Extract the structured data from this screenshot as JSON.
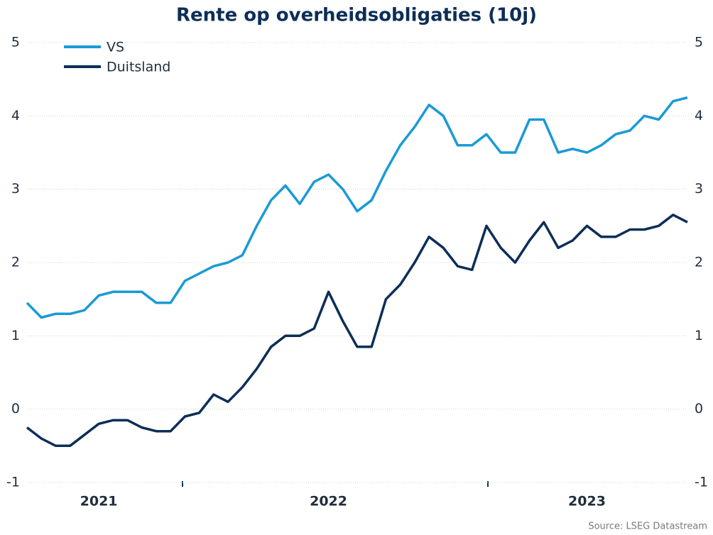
{
  "chart_data": {
    "type": "line",
    "title": "Rente op overheidsobligaties (10j)",
    "categories": [
      null,
      null,
      null,
      null,
      null,
      "2021",
      null,
      null,
      null,
      null,
      null,
      null,
      null,
      null,
      null,
      null,
      null,
      null,
      null,
      null,
      null,
      "2022",
      null,
      null,
      null,
      null,
      null,
      null,
      null,
      null,
      null,
      null,
      null,
      null,
      null,
      null,
      null,
      null,
      null,
      "2023",
      null,
      null,
      null,
      null,
      null,
      null,
      null
    ],
    "series": [
      {
        "name": "VS",
        "color": "#1a9ad6",
        "values": [
          1.45,
          1.25,
          1.3,
          1.3,
          1.35,
          1.55,
          1.6,
          1.6,
          1.6,
          1.45,
          1.45,
          1.75,
          1.85,
          1.95,
          2.0,
          2.1,
          2.5,
          2.85,
          3.05,
          2.8,
          3.1,
          3.2,
          3.0,
          2.7,
          2.85,
          3.25,
          3.6,
          3.85,
          4.15,
          4.0,
          3.6,
          3.6,
          3.75,
          3.5,
          3.5,
          3.95,
          3.95,
          3.5,
          3.55,
          3.5,
          3.6,
          3.75,
          3.8,
          4.0,
          3.95,
          4.2,
          4.25
        ]
      },
      {
        "name": "Duitsland",
        "color": "#0c2e57",
        "values": [
          -0.25,
          -0.4,
          -0.5,
          -0.5,
          -0.35,
          -0.2,
          -0.15,
          -0.15,
          -0.25,
          -0.3,
          -0.3,
          -0.1,
          -0.05,
          0.2,
          0.1,
          0.3,
          0.55,
          0.85,
          1.0,
          1.0,
          1.1,
          1.6,
          1.2,
          0.85,
          0.85,
          1.5,
          1.7,
          2.0,
          2.35,
          2.2,
          1.95,
          1.9,
          2.5,
          2.2,
          2.0,
          2.3,
          2.55,
          2.2,
          2.3,
          2.5,
          2.35,
          2.35,
          2.45,
          2.45,
          2.5,
          2.65,
          2.55
        ]
      }
    ],
    "ylim": [
      -1,
      5
    ],
    "yticks": [
      -1,
      0,
      1,
      2,
      3,
      4,
      5
    ],
    "y2lim": [
      -1,
      5
    ],
    "y2ticks": [
      -1,
      0,
      1,
      2,
      3,
      4,
      5
    ],
    "grid": true,
    "legend": "top-left",
    "source": "Source: LSEG Datastream"
  }
}
